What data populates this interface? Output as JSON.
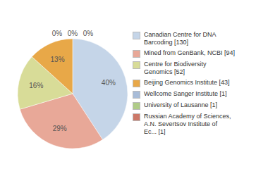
{
  "chart_data": {
    "type": "pie",
    "categories": [
      "Canadian Centre for DNA\nBarcoding [130]",
      "Mined from GenBank, NCBI [94]",
      "Centre for Biodiversity\nGenomics [52]",
      "Beijing Genomics Institute [43]",
      "Wellcome Sanger Institute [1]",
      "University of Lausanne [1]",
      "Russian Academy of Sciences,\nA.N. Severtsov Institute of\nEc... [1]"
    ],
    "values": [
      40,
      29,
      16,
      13,
      0,
      0,
      0
    ],
    "value_labels": [
      "40%",
      "29%",
      "16%",
      "13%",
      "0%",
      "0%",
      "0%"
    ],
    "colors": [
      "#c5d5e8",
      "#e8a898",
      "#d8dc98",
      "#e8a848",
      "#a8bcd8",
      "#b0cc88",
      "#cc7868"
    ],
    "data_labels": true,
    "legend": "right"
  }
}
